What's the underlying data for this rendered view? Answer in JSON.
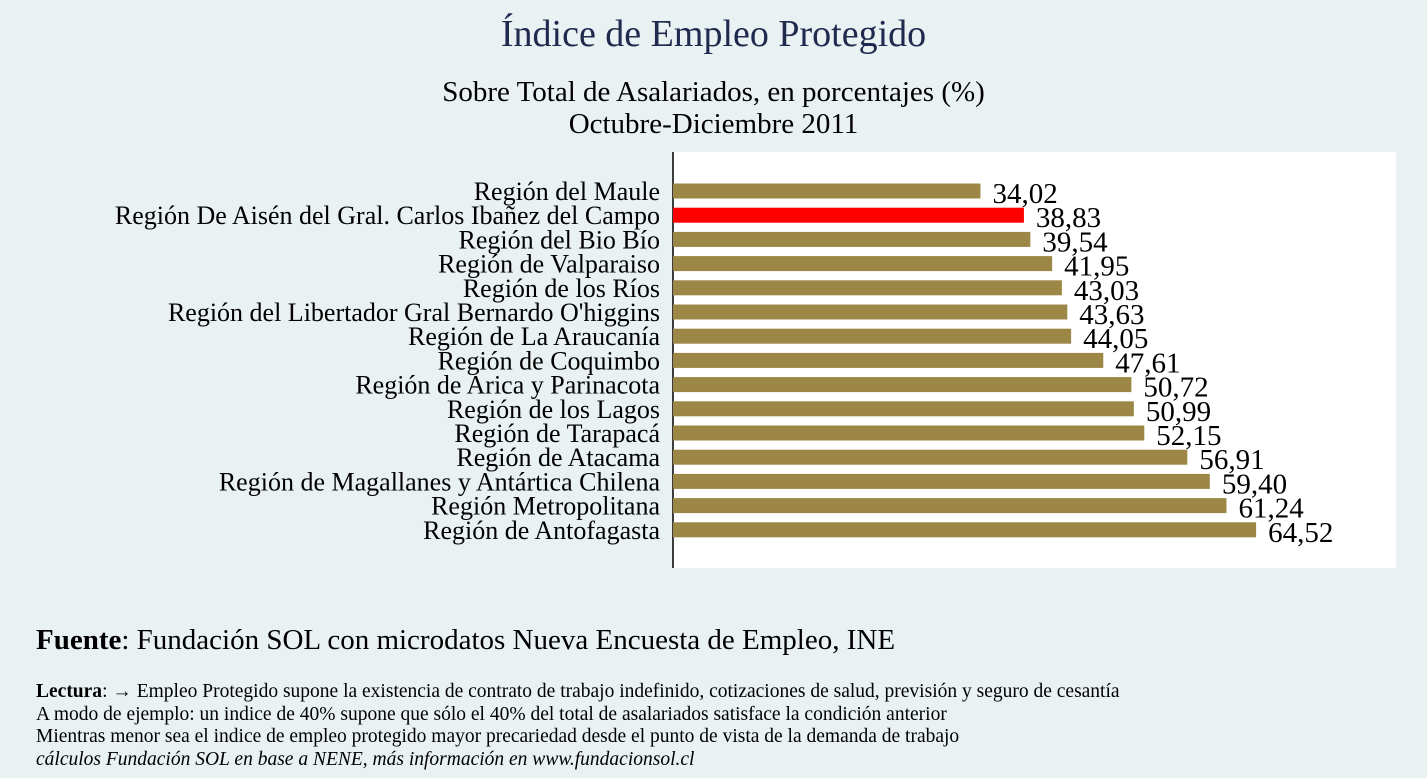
{
  "header": {
    "title": "Índice de Empleo Protegido",
    "subtitle_line1": "Sobre Total de Asalariados, en porcentajes (%)",
    "subtitle_line2": "Octubre-Diciembre 2011"
  },
  "chart_data": {
    "type": "bar",
    "orientation": "horizontal",
    "title": "Índice de Empleo Protegido",
    "subtitle": "Sobre Total de Asalariados, en porcentajes (%) — Octubre-Diciembre 2011",
    "categories": [
      "Región del Maule",
      "Región De Aisén del Gral. Carlos Ibañez del Campo",
      "Región del Bio Bío",
      "Región de Valparaiso",
      "Región de los Ríos",
      "Región del Libertador Gral Bernardo O'higgins",
      "Región de La Araucanía",
      "Región de Coquimbo",
      "Región de Arica y Parinacota",
      "Región de los Lagos",
      "Región de Tarapacá",
      "Región de Atacama",
      "Región de Magallanes y Antártica Chilena",
      "Región Metropolitana",
      "Región de Antofagasta"
    ],
    "values": [
      34.02,
      38.83,
      39.54,
      41.95,
      43.03,
      43.63,
      44.05,
      47.61,
      50.72,
      50.99,
      52.15,
      56.91,
      59.4,
      61.24,
      64.52
    ],
    "value_labels": [
      "34,02",
      "38,83",
      "39,54",
      "41,95",
      "43,03",
      "43,63",
      "44,05",
      "47,61",
      "50,72",
      "50,99",
      "52,15",
      "56,91",
      "59,40",
      "61,24",
      "64,52"
    ],
    "highlight_index": 1,
    "xlim": [
      0,
      80
    ],
    "grid": false,
    "colors": {
      "bar": "#9c8747",
      "highlight": "#ff0000",
      "plot_bg": "#ffffff"
    }
  },
  "footer": {
    "fuente_label": "Fuente",
    "fuente_text": ": Fundación SOL con microdatos Nueva Encuesta de Empleo, INE",
    "lectura_label": "Lectura",
    "lectura_text": ": →  Empleo Protegido supone la existencia de contrato de trabajo indefinido, cotizaciones de salud, previsión y seguro de cesantía",
    "line2": "A modo de ejemplo: un indice de 40% supone que sólo el 40% del total de asalariados satisface la condición anterior",
    "line3": "Mientras menor sea el indice de empleo protegido mayor precariedad desde el punto de vista de la demanda de trabajo",
    "line4": "cálculos Fundación SOL en base a NENE, más información en www.fundacionsol.cl"
  }
}
